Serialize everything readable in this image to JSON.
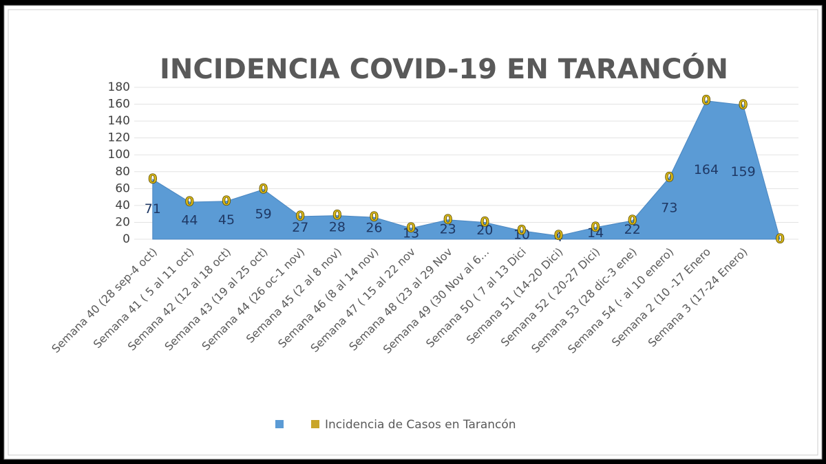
{
  "chart_data": {
    "type": "stacked_area",
    "title": "INCIDENCIA COVID-19 EN TARANCÓN",
    "categories": [
      "Semana 40 (28 sep-4 oct)",
      "Semana 41 ( 5 al 11 oct)",
      "Semana 42 (12 al 18 oct)",
      "Semana 43 (19 al 25 oct)",
      "Semana 44 (26 oc-1 nov)",
      "Semana 45 (2 al 8 nov)",
      "Semana 46 (8 al 14 nov)",
      "Semana 47 ( 15 al 22 nov",
      "Semana 48 (23 al 29 Nov",
      "Semana 49 (30 Nov al 6…",
      "Semana 50 ( 7 al 13 Dici",
      "Semana 51 (14-20 Dici)",
      "Semana 52 ( 20-27 Dici)",
      "Semana 53 (28 dic-3 ene)",
      "Semana 54 (· al 10 enero)",
      "Semana 2 (10 -17 Enero",
      "Semana 3 (17-24 Enero)",
      null
    ],
    "series": [
      {
        "color": "#5b9bd5",
        "values": [
          71,
          44,
          45,
          59,
          27,
          28,
          26,
          13,
          23,
          20,
          10,
          4,
          14,
          22,
          73,
          164,
          159,
          0
        ]
      },
      {
        "name": "Incidencia de Casos en Tarancón",
        "color": "#c9a62a",
        "values": [
          0,
          0,
          0,
          0,
          0,
          0,
          0,
          0,
          0,
          0,
          0,
          0,
          0,
          0,
          0,
          0,
          0,
          0
        ]
      }
    ],
    "ylim": [
      0,
      180
    ],
    "yticks": [
      0,
      20,
      40,
      60,
      80,
      100,
      120,
      140,
      160,
      180
    ],
    "grid": true,
    "legend": "bottom"
  }
}
